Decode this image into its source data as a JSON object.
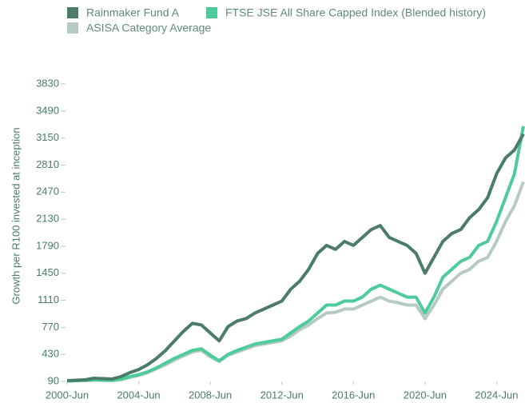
{
  "chart_data": {
    "type": "line",
    "y_label": "Growth per R100 invested at inception",
    "x": [
      2000.5,
      2001,
      2001.5,
      2002,
      2002.5,
      2003,
      2003.5,
      2004,
      2004.5,
      2005,
      2005.5,
      2006,
      2006.5,
      2007,
      2007.5,
      2008,
      2008.5,
      2009,
      2009.5,
      2010,
      2010.5,
      2011,
      2011.5,
      2012,
      2012.5,
      2013,
      2013.5,
      2014,
      2014.5,
      2015,
      2015.5,
      2016,
      2016.5,
      2017,
      2017.5,
      2018,
      2018.5,
      2019,
      2019.5,
      2020,
      2020.5,
      2021,
      2021.5,
      2022,
      2022.5,
      2023,
      2023.5,
      2024,
      2024.5,
      2025,
      2025.5,
      2026
    ],
    "series": [
      {
        "name": "Rainmaker Fund A",
        "color": "#4a7c67",
        "values": [
          100,
          105,
          110,
          130,
          125,
          120,
          150,
          200,
          240,
          300,
          380,
          480,
          600,
          720,
          820,
          800,
          700,
          600,
          780,
          850,
          880,
          950,
          1000,
          1050,
          1100,
          1250,
          1350,
          1500,
          1700,
          1800,
          1750,
          1850,
          1800,
          1900,
          2000,
          2050,
          1900,
          1850,
          1800,
          1700,
          1450,
          1650,
          1850,
          1950,
          2000,
          2150,
          2250,
          2400,
          2700,
          2900,
          3000,
          3200
        ]
      },
      {
        "name": "FTSE JSE All Share Capped Index (Blended history)",
        "color": "#4ecb9a",
        "values": [
          95,
          100,
          105,
          110,
          108,
          105,
          120,
          150,
          175,
          210,
          260,
          320,
          380,
          430,
          480,
          500,
          420,
          350,
          430,
          480,
          520,
          560,
          580,
          600,
          620,
          700,
          780,
          850,
          950,
          1050,
          1050,
          1100,
          1100,
          1150,
          1250,
          1300,
          1250,
          1200,
          1150,
          1150,
          950,
          1150,
          1400,
          1500,
          1600,
          1650,
          1800,
          1850,
          2100,
          2400,
          2700,
          3300
        ]
      },
      {
        "name": "ASISA Category Average",
        "color": "#b5cbc1",
        "values": [
          95,
          98,
          100,
          105,
          103,
          100,
          110,
          140,
          165,
          200,
          250,
          300,
          360,
          410,
          460,
          480,
          400,
          340,
          420,
          460,
          500,
          540,
          560,
          580,
          600,
          660,
          740,
          800,
          880,
          950,
          960,
          1000,
          1000,
          1050,
          1100,
          1150,
          1100,
          1080,
          1050,
          1050,
          880,
          1050,
          1250,
          1350,
          1450,
          1500,
          1600,
          1650,
          1850,
          2100,
          2300,
          2600
        ]
      }
    ],
    "xlim": [
      2000.5,
      2026
    ],
    "xticks": [
      {
        "value": 2000.5,
        "label": "2000-Jun"
      },
      {
        "value": 2004.5,
        "label": "2004-Jun"
      },
      {
        "value": 2008.5,
        "label": "2008-Jun"
      },
      {
        "value": 2012.5,
        "label": "2012-Jun"
      },
      {
        "value": 2016.5,
        "label": "2016-Jun"
      },
      {
        "value": 2020.5,
        "label": "2020-Jun"
      },
      {
        "value": 2024.5,
        "label": "2024-Jun"
      }
    ],
    "ylim": [
      90,
      3830
    ],
    "yticks": [
      90,
      430,
      770,
      1110,
      1450,
      1790,
      2130,
      2470,
      2810,
      3150,
      3490,
      3830
    ],
    "legend": "top-left"
  }
}
